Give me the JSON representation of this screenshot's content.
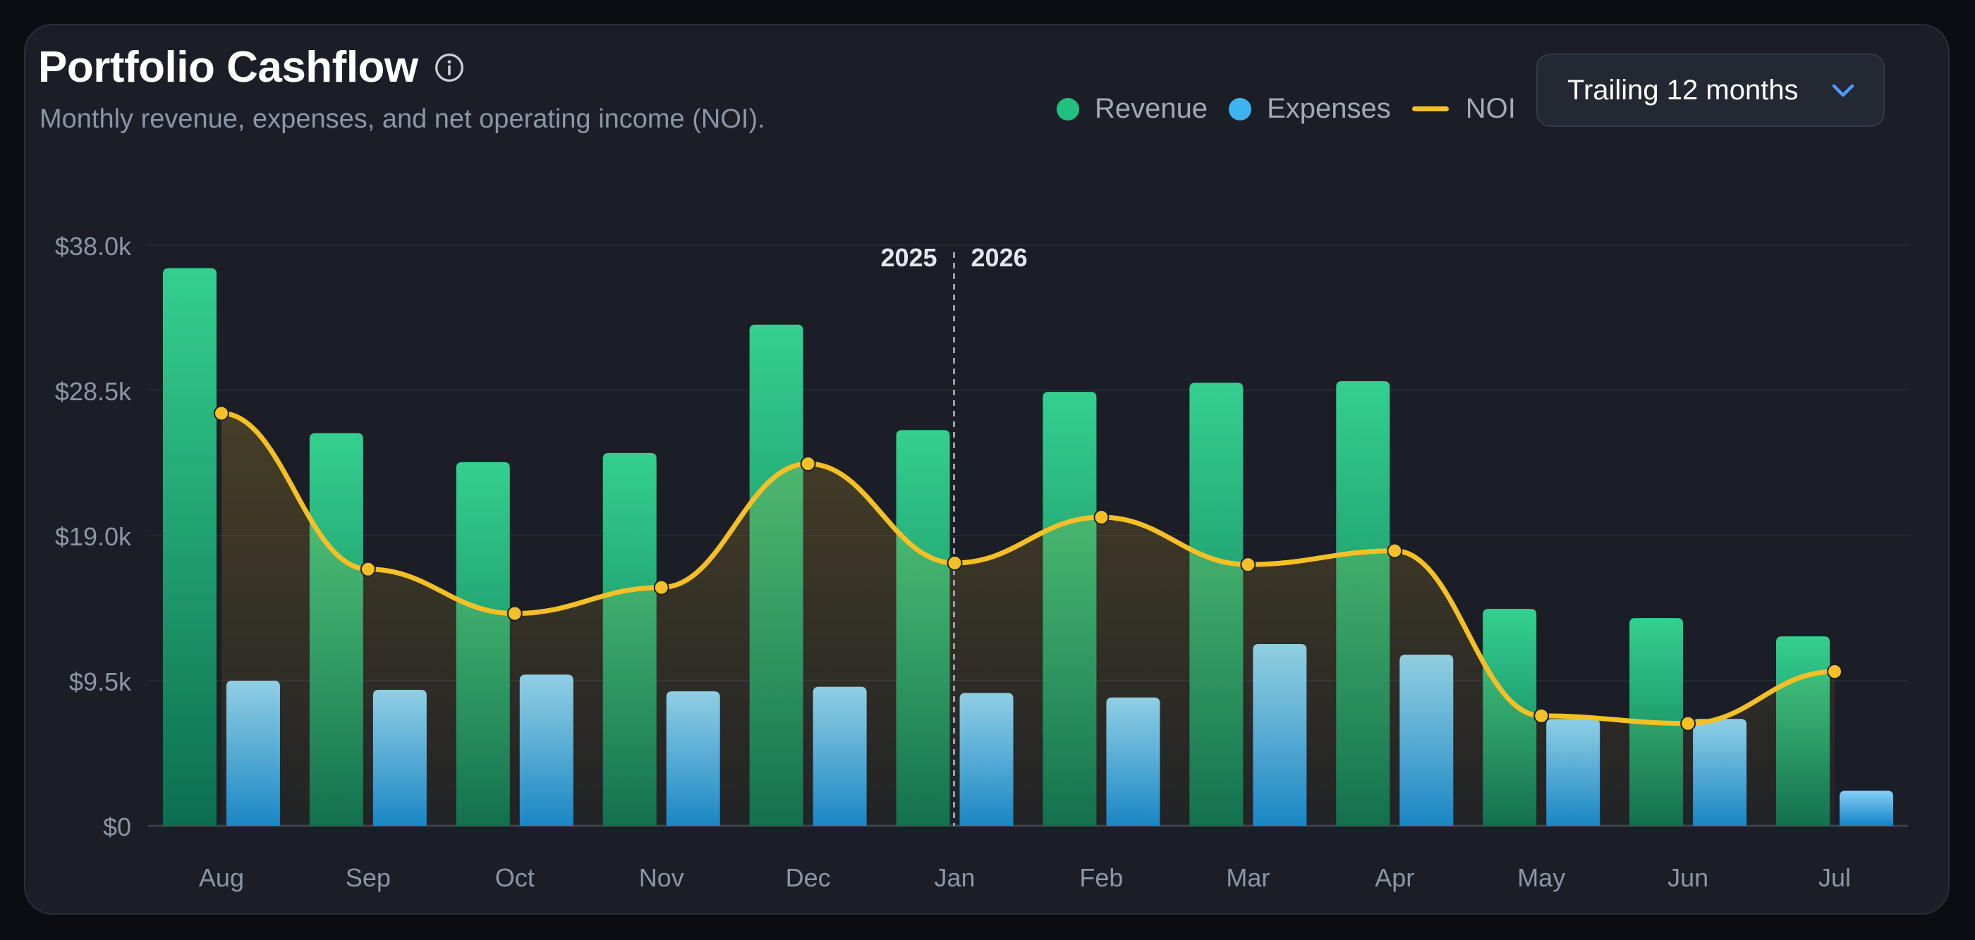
{
  "header": {
    "title": "Portfolio Cashflow",
    "subtitle": "Monthly revenue, expenses, and net operating income (NOI).",
    "info_icon": "info-icon"
  },
  "legend": [
    {
      "key": "revenue",
      "label": "Revenue",
      "color": "#22c07f"
    },
    {
      "key": "expenses",
      "label": "Expenses",
      "color": "#3fb3f0"
    },
    {
      "key": "noi",
      "label": "NOI",
      "color": "#f5c026"
    }
  ],
  "period_select": {
    "label": "Trailing 12 months",
    "icon": "chevron-down-icon"
  },
  "chart_data": {
    "type": "bar",
    "categories": [
      "Aug",
      "Sep",
      "Oct",
      "Nov",
      "Dec",
      "Jan",
      "Feb",
      "Mar",
      "Apr",
      "May",
      "Jun",
      "Jul"
    ],
    "series": [
      {
        "name": "Revenue",
        "type": "bar",
        "color": "#22c07f",
        "values": [
          36500,
          25700,
          23800,
          24400,
          32800,
          25900,
          28400,
          29000,
          29100,
          14200,
          13600,
          12400
        ]
      },
      {
        "name": "Expenses",
        "type": "bar",
        "color": "#3fb3f0",
        "values": [
          9500,
          8900,
          9900,
          8800,
          9100,
          8700,
          8400,
          11900,
          11200,
          7000,
          7000,
          2300
        ]
      },
      {
        "name": "NOI",
        "type": "line",
        "color": "#f5c026",
        "values": [
          27000,
          16800,
          13900,
          15600,
          23700,
          17200,
          20200,
          17100,
          18000,
          7200,
          6700,
          10100
        ]
      }
    ],
    "ylim": [
      0,
      38000
    ],
    "yticks": [
      0,
      9500,
      19000,
      28500,
      38000
    ],
    "ytick_labels": [
      "$0",
      "$9.5k",
      "$19.0k",
      "$28.5k",
      "$38.0k"
    ],
    "annotations": [
      {
        "type": "vertical-divider",
        "between": [
          "Dec",
          "Jan"
        ],
        "labels": [
          "2025",
          "2026"
        ]
      }
    ],
    "grid": true
  }
}
